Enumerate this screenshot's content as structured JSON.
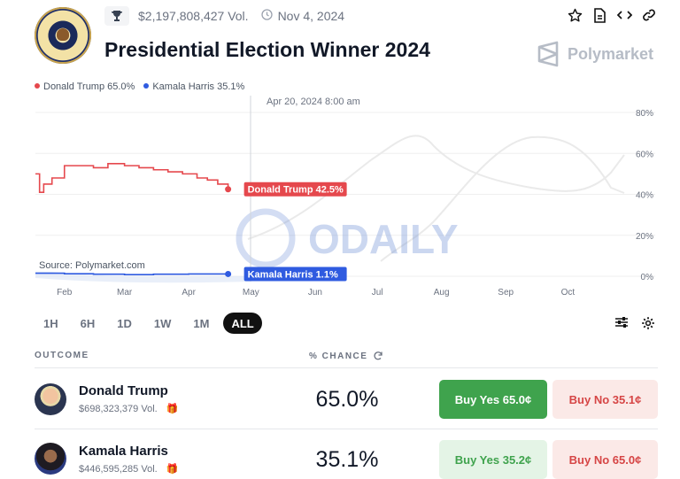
{
  "header": {
    "volume": "$2,197,808,427 Vol.",
    "date": "Nov 4, 2024",
    "title": "Presidential Election Winner 2024",
    "brand": "Polymarket",
    "icons": [
      "trophy-icon",
      "clock-icon",
      "star-icon",
      "document-icon",
      "embed-code-icon",
      "link-icon"
    ]
  },
  "legend": [
    {
      "label": "Donald Trump 65.0%",
      "color": "#e5484d"
    },
    {
      "label": "Kamala Harris 35.1%",
      "color": "#2f5be0"
    }
  ],
  "watermark": "ODAILY",
  "chart_data": {
    "type": "line",
    "hover_date": "Apr 20, 2024 8:00 am",
    "source": "Source: Polymarket.com",
    "x_ticks": [
      "Feb",
      "Mar",
      "Apr",
      "May",
      "Jun",
      "Jul",
      "Aug",
      "Sep",
      "Oct"
    ],
    "y_ticks": [
      "80%",
      "60%",
      "40%",
      "20%",
      "0%"
    ],
    "ylim": [
      0,
      80
    ],
    "grid": true,
    "series": [
      {
        "name": "Donald Trump",
        "color": "#e5484d",
        "hover_label": "Donald Trump 42.5%",
        "x": [
          "Jan 18",
          "Jan 20",
          "Jan 22",
          "Jan 24",
          "Jan 26",
          "Feb 1",
          "Feb 8",
          "Feb 15",
          "Feb 22",
          "Mar 1",
          "Mar 8",
          "Mar 15",
          "Mar 22",
          "Mar 29",
          "Apr 5",
          "Apr 10",
          "Apr 15",
          "Apr 20"
        ],
        "y": [
          50,
          41,
          45,
          45,
          48,
          54,
          54,
          53,
          55,
          54,
          53,
          52,
          51,
          50,
          48,
          47,
          45,
          42.5
        ]
      },
      {
        "name": "Kamala Harris",
        "color": "#2f5be0",
        "hover_label": "Kamala Harris 1.1%",
        "x": [
          "Jan 18",
          "Feb 1",
          "Feb 15",
          "Mar 1",
          "Mar 15",
          "Apr 1",
          "Apr 20"
        ],
        "y": [
          1.5,
          1.2,
          1.0,
          0.8,
          1.0,
          1.1,
          1.1
        ]
      }
    ]
  },
  "controls": {
    "ranges": [
      "1H",
      "6H",
      "1D",
      "1W",
      "1M",
      "ALL"
    ],
    "active_range": "ALL"
  },
  "table": {
    "outcome_header": "OUTCOME",
    "chance_header": "% CHANCE",
    "rows": [
      {
        "name": "Donald Trump",
        "volume": "$698,323,379 Vol.",
        "chance": "65.0%",
        "buy_yes": "Buy Yes 65.0¢",
        "buy_no": "Buy No 35.1¢"
      },
      {
        "name": "Kamala Harris",
        "volume": "$446,595,285 Vol.",
        "chance": "35.1%",
        "buy_yes": "Buy Yes 35.2¢",
        "buy_no": "Buy No 65.0¢"
      }
    ]
  }
}
